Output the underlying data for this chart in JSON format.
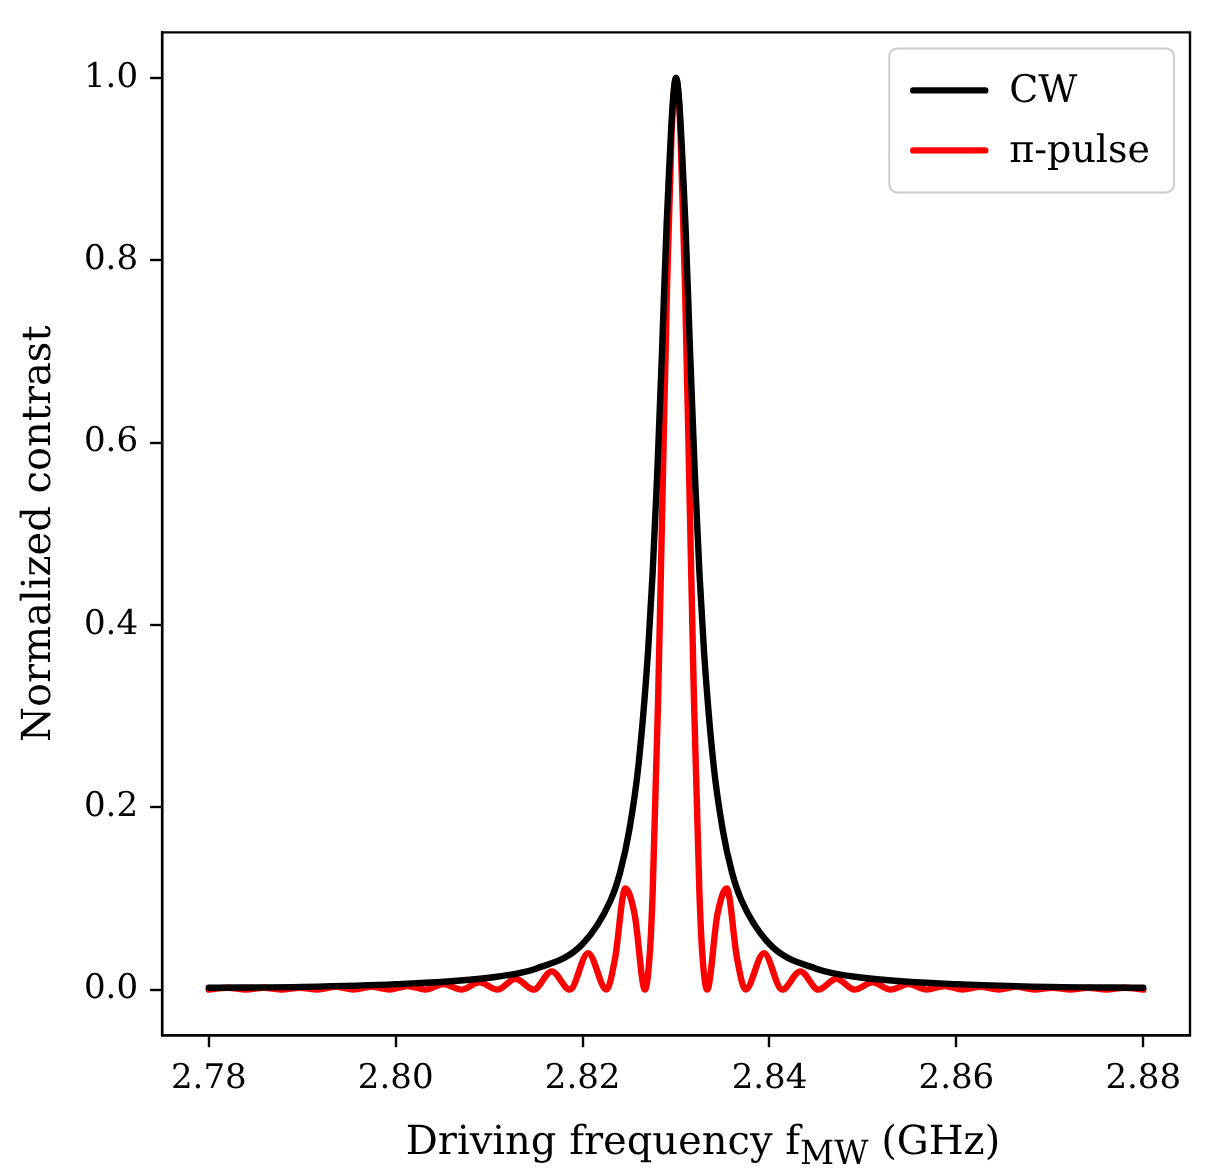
{
  "chart_data": {
    "type": "line",
    "xlabel": "Driving frequency f$_{MW}$ (GHz)",
    "ylabel": "Normalized contrast",
    "xlim": [
      2.775,
      2.885
    ],
    "ylim": [
      -0.05,
      1.05
    ],
    "xticks": [
      2.78,
      {
        "value": 2.8,
        "label": "2.80"
      },
      2.82,
      2.84,
      2.86,
      2.88
    ],
    "yticks": [
      {
        "value": 0,
        "label": "0.0"
      },
      0.2,
      0.4,
      0.6,
      0.8,
      {
        "value": 1,
        "label": "1.0"
      }
    ],
    "grid": false,
    "legend": "top right",
    "line_style": "solid",
    "marker": "none",
    "series": [
      {
        "name": "CW",
        "color": "#000000",
        "x": [
          2.78,
          2.79,
          2.8,
          2.81,
          2.815,
          2.82,
          2.823,
          2.824,
          2.825,
          2.826,
          2.827,
          2.8275,
          2.828,
          2.8285,
          2.829,
          2.83,
          2.831,
          2.8315,
          2.832,
          2.8325,
          2.833,
          2.834,
          2.835,
          2.836,
          2.837,
          2.84,
          2.845,
          2.85,
          2.86,
          2.87,
          2.88
        ],
        "values": [
          0.002,
          0.003,
          0.006,
          0.013,
          0.023,
          0.05,
          0.098,
          0.128,
          0.175,
          0.248,
          0.37,
          0.458,
          0.569,
          0.7,
          0.841,
          1,
          0.841,
          0.7,
          0.569,
          0.458,
          0.37,
          0.248,
          0.175,
          0.128,
          0.098,
          0.05,
          0.023,
          0.013,
          0.006,
          0.003,
          0.002
        ]
      },
      {
        "name": "π-pulse",
        "color": "#ff0000",
        "x": [
          2.78,
          2.78204,
          2.78396,
          2.78588,
          2.7878,
          2.78973,
          2.79165,
          2.79357,
          2.79549,
          2.79742,
          2.79934,
          2.80126,
          2.80319,
          2.80511,
          2.80704,
          2.80897,
          2.8109,
          2.81283,
          2.81476,
          2.8167,
          2.81864,
          2.82059,
          2.82256,
          2.82347,
          2.82457,
          2.82558,
          2.82667,
          2.8272,
          2.8275,
          2.82808,
          2.82856,
          2.82904,
          2.82952,
          2.83,
          2.83048,
          2.83096,
          2.83144,
          2.83192,
          2.8325,
          2.8328,
          2.83333,
          2.83442,
          2.83543,
          2.83653,
          2.83744,
          2.83941,
          2.84136,
          2.8433,
          2.84524,
          2.84717,
          2.8491,
          2.85103,
          2.85296,
          2.85489,
          2.85681,
          2.85874,
          2.86066,
          2.86258,
          2.86451,
          2.86643,
          2.86835,
          2.87027,
          2.8722,
          2.87412,
          2.87604,
          2.87796,
          2.88
        ],
        "values": [
          0,
          0.002,
          0,
          0.002,
          0,
          0.002,
          0,
          0.003,
          0,
          0.003,
          0,
          0.004,
          0,
          0.006,
          0,
          0.008,
          0,
          0.012,
          0,
          0.02,
          0,
          0.04,
          0,
          0.034,
          0.111,
          0.082,
          0,
          0.041,
          0.107,
          0.317,
          0.546,
          0.773,
          0.939,
          1,
          0.939,
          0.773,
          0.546,
          0.317,
          0.107,
          0.041,
          0,
          0.082,
          0.111,
          0.034,
          0,
          0.04,
          0,
          0.02,
          0,
          0.012,
          0,
          0.008,
          0,
          0.006,
          0,
          0.004,
          0,
          0.003,
          0,
          0.003,
          0,
          0.002,
          0,
          0.002,
          0,
          0.002,
          0
        ]
      }
    ]
  }
}
